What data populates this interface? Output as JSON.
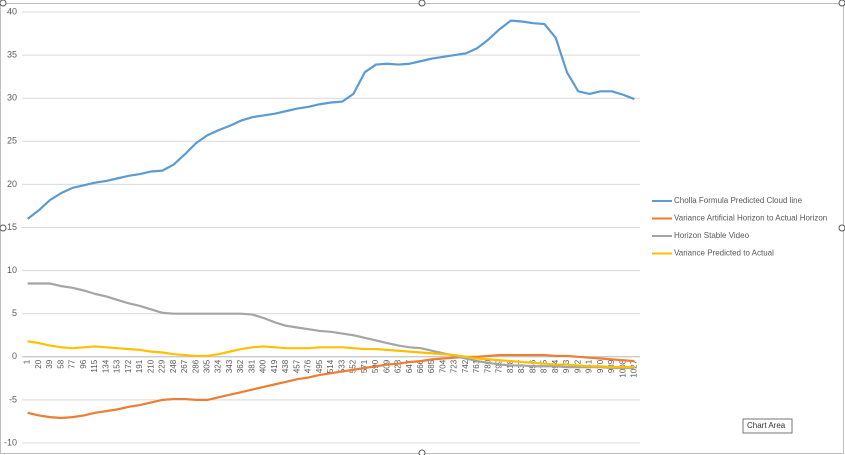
{
  "chart_data": {
    "type": "line",
    "categories": [
      "1",
      "20",
      "39",
      "58",
      "77",
      "96",
      "115",
      "134",
      "153",
      "172",
      "191",
      "210",
      "229",
      "248",
      "267",
      "286",
      "305",
      "324",
      "343",
      "362",
      "381",
      "400",
      "419",
      "438",
      "457",
      "476",
      "495",
      "514",
      "533",
      "552",
      "571",
      "590",
      "609",
      "628",
      "647",
      "666",
      "685",
      "704",
      "723",
      "742",
      "761",
      "780",
      "799",
      "818",
      "837",
      "856",
      "875",
      "894",
      "913",
      "932",
      "951",
      "970",
      "989",
      "1008",
      "1027"
    ],
    "series": [
      {
        "name": "Cholla Formula Predicted Cloud line",
        "color": "#5b9bd5",
        "values": [
          16.0,
          17.0,
          18.2,
          19.0,
          19.6,
          19.9,
          20.2,
          20.4,
          20.7,
          21.0,
          21.2,
          21.5,
          21.6,
          22.3,
          23.5,
          24.8,
          25.7,
          26.3,
          26.8,
          27.4,
          27.8,
          28.0,
          28.2,
          28.5,
          28.8,
          29.0,
          29.3,
          29.5,
          29.6,
          30.5,
          33.0,
          33.9,
          34.0,
          33.9,
          34.0,
          34.3,
          34.6,
          34.8,
          35.0,
          35.2,
          35.8,
          36.8,
          38.0,
          39.0,
          38.9,
          38.7,
          38.6,
          37.0,
          33.0,
          30.8,
          30.5,
          30.8,
          30.8,
          30.4,
          29.9
        ]
      },
      {
        "name": "Variance Artificial Horizon to Actual Horizon",
        "color": "#ed7d31",
        "values": [
          -6.5,
          -6.8,
          -7.0,
          -7.1,
          -7.0,
          -6.8,
          -6.5,
          -6.3,
          -6.1,
          -5.8,
          -5.6,
          -5.3,
          -5.0,
          -4.9,
          -4.9,
          -5.0,
          -5.0,
          -4.7,
          -4.4,
          -4.1,
          -3.8,
          -3.5,
          -3.2,
          -2.9,
          -2.6,
          -2.4,
          -2.1,
          -1.9,
          -1.7,
          -1.5,
          -1.3,
          -1.1,
          -0.9,
          -0.8,
          -0.6,
          -0.5,
          -0.3,
          -0.2,
          -0.1,
          0.0,
          0.0,
          0.1,
          0.2,
          0.2,
          0.2,
          0.2,
          0.2,
          0.1,
          0.1,
          0.0,
          -0.1,
          -0.2,
          -0.3,
          -0.4,
          -0.5
        ]
      },
      {
        "name": "Horizon Stable Video",
        "color": "#a5a5a5",
        "values": [
          8.5,
          8.5,
          8.5,
          8.2,
          8.0,
          7.7,
          7.3,
          7.0,
          6.6,
          6.2,
          5.9,
          5.5,
          5.1,
          5.0,
          5.0,
          5.0,
          5.0,
          5.0,
          5.0,
          5.0,
          4.9,
          4.5,
          4.0,
          3.6,
          3.4,
          3.2,
          3.0,
          2.9,
          2.7,
          2.5,
          2.2,
          1.9,
          1.6,
          1.3,
          1.1,
          1.0,
          0.7,
          0.4,
          0.1,
          -0.2,
          -0.5,
          -0.7,
          -0.9,
          -1.0,
          -1.0,
          -1.1,
          -1.1,
          -1.1,
          -1.2,
          -1.2,
          -1.2,
          -1.2,
          -1.3,
          -1.3,
          -1.3
        ]
      },
      {
        "name": "Variance  Predicted to Actual",
        "color": "#ffc000",
        "values": [
          1.8,
          1.6,
          1.3,
          1.1,
          1.0,
          1.1,
          1.2,
          1.1,
          1.0,
          0.9,
          0.8,
          0.6,
          0.5,
          0.3,
          0.2,
          0.1,
          0.1,
          0.3,
          0.6,
          0.9,
          1.1,
          1.2,
          1.1,
          1.0,
          1.0,
          1.0,
          1.1,
          1.1,
          1.1,
          1.0,
          0.9,
          0.9,
          0.8,
          0.7,
          0.6,
          0.5,
          0.4,
          0.3,
          0.2,
          0.0,
          -0.2,
          -0.3,
          -0.4,
          -0.5,
          -0.6,
          -0.7,
          -0.8,
          -0.9,
          -0.9,
          -1.0,
          -1.1,
          -1.1,
          -1.2,
          -1.2,
          -1.2
        ]
      }
    ],
    "ylim": [
      -10,
      40
    ],
    "yticks": [
      -10,
      -5,
      0,
      5,
      10,
      15,
      20,
      25,
      30,
      35,
      40
    ],
    "grid": true,
    "legend": "right",
    "tooltip": "Chart Area"
  }
}
